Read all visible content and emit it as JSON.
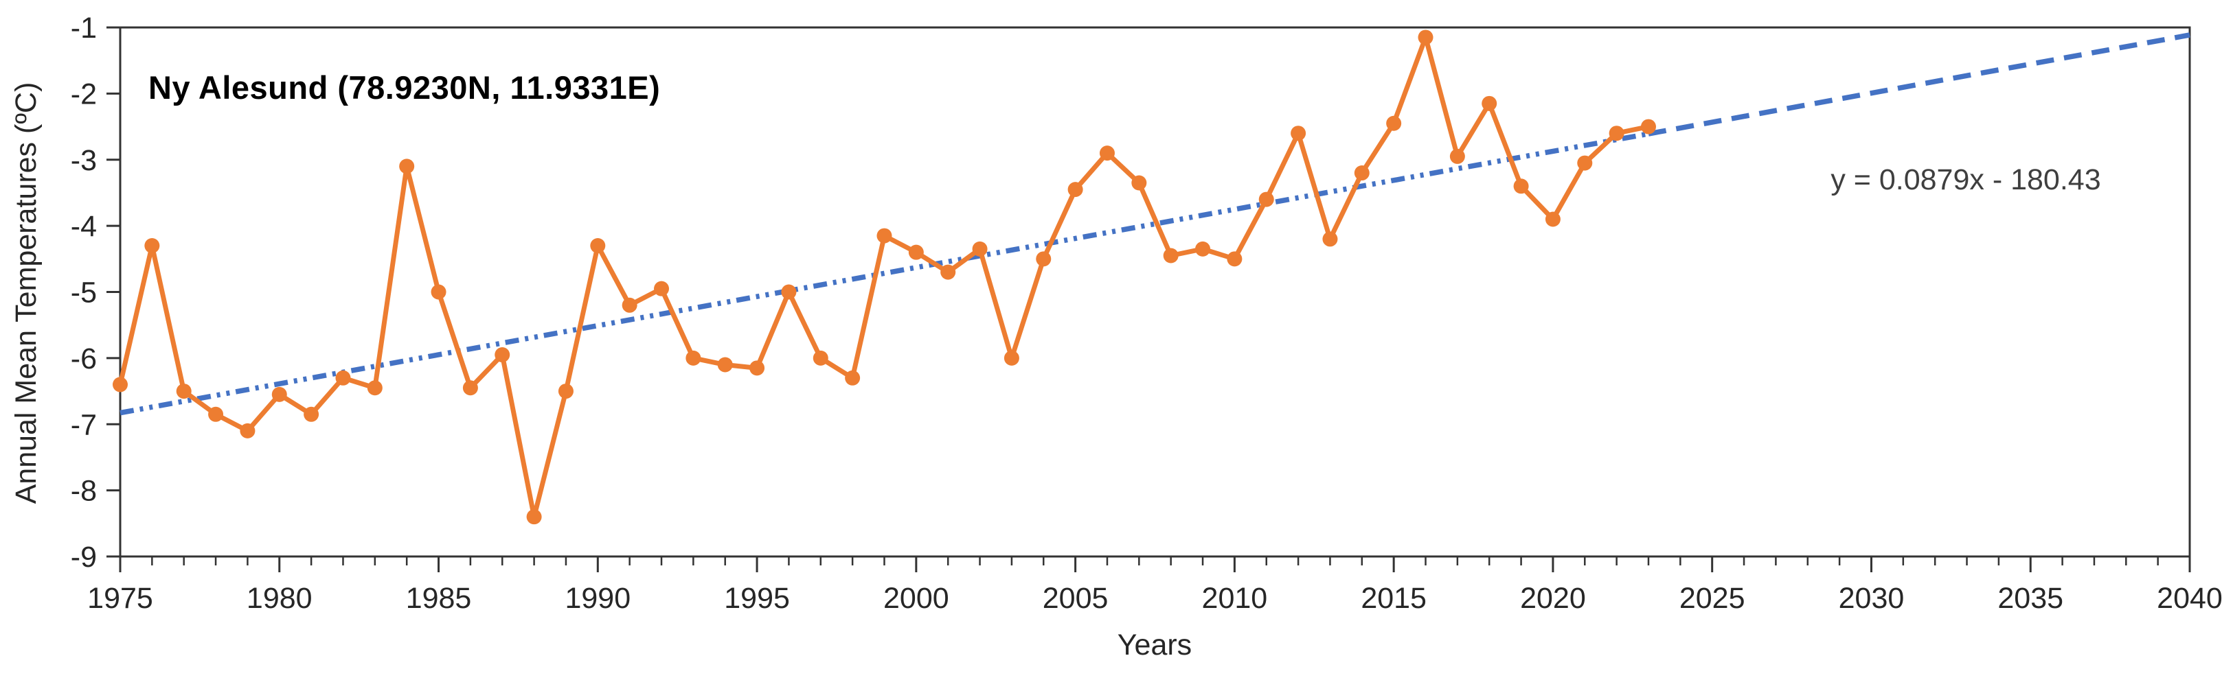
{
  "chart_data": {
    "type": "line",
    "title": "Ny Alesund (78.9230N, 11.9331E)",
    "xlabel": "Years",
    "ylabel": "Annual Mean Temperatures (ºC)",
    "x_range": [
      1975,
      2040
    ],
    "y_range": [
      -9,
      -1
    ],
    "x_tick_step_major": 5,
    "x_tick_step_minor": 1,
    "y_tick_step": 1,
    "grid": "off",
    "legend": "none",
    "series_name": "Annual mean temperature",
    "series_color": "#ED7D31",
    "years": [
      1975,
      1976,
      1977,
      1978,
      1979,
      1980,
      1981,
      1982,
      1983,
      1984,
      1985,
      1986,
      1987,
      1988,
      1989,
      1990,
      1991,
      1992,
      1993,
      1994,
      1995,
      1996,
      1997,
      1998,
      1999,
      2000,
      2001,
      2002,
      2003,
      2004,
      2005,
      2006,
      2007,
      2008,
      2009,
      2010,
      2011,
      2012,
      2013,
      2014,
      2015,
      2016,
      2017,
      2018,
      2019,
      2020,
      2021,
      2022,
      2023
    ],
    "values": [
      -6.4,
      -4.3,
      -6.5,
      -6.85,
      -7.1,
      -6.55,
      -6.85,
      -6.3,
      -6.45,
      -3.1,
      -5.0,
      -6.45,
      -5.95,
      -8.4,
      -6.5,
      -4.3,
      -5.2,
      -4.95,
      -6.0,
      -6.1,
      -6.15,
      -5.0,
      -6.0,
      -6.3,
      -4.15,
      -4.4,
      -4.7,
      -4.35,
      -6.0,
      -4.5,
      -3.45,
      -2.9,
      -3.35,
      -4.45,
      -4.35,
      -4.5,
      -3.6,
      -2.6,
      -4.2,
      -3.2,
      -2.45,
      -1.15,
      -2.95,
      -2.15,
      -3.4,
      -3.9,
      -3.05,
      -2.6,
      -2.5
    ],
    "trendline": {
      "equation": "y = 0.0879x - 180.43",
      "slope": 0.0879,
      "intercept": -180.43,
      "color": "#4472C4",
      "dash_dot_until_year": 2023,
      "forecast_until_year": 2040,
      "style": "dash-dot over data range, long dashes for forecast"
    },
    "frame_color": "#333333",
    "tick_text_color": "#262626",
    "y_tick_labels": [
      "-1",
      "-2",
      "-3",
      "-4",
      "-5",
      "-6",
      "-7",
      "-8",
      "-9"
    ],
    "x_tick_labels": [
      "1975",
      "1980",
      "1985",
      "1990",
      "1995",
      "2000",
      "2005",
      "2010",
      "2015",
      "2020",
      "2025",
      "2030",
      "2035",
      "2040"
    ]
  }
}
